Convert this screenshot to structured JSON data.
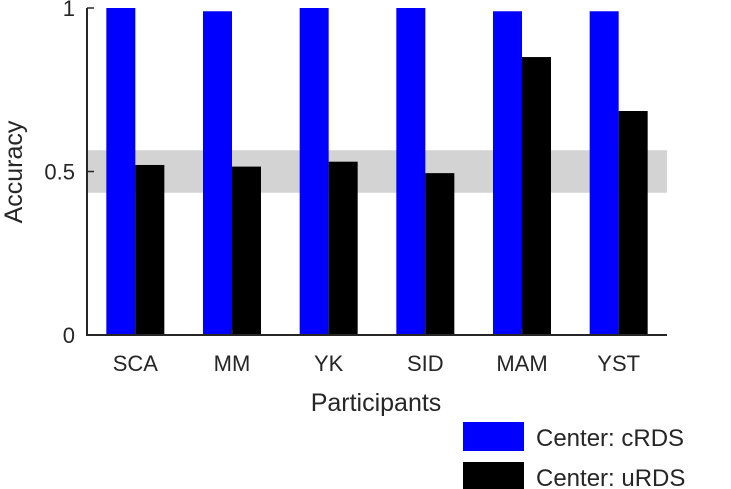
{
  "chart_data": {
    "type": "bar",
    "title": "",
    "xlabel": "Participants",
    "ylabel": "Accuracy",
    "categories": [
      "SCA",
      "MM",
      "YK",
      "SID",
      "MAM",
      "YST"
    ],
    "series": [
      {
        "name": "Center: cRDS",
        "color": "#0000ff",
        "values": [
          1.0,
          0.99,
          1.0,
          1.0,
          0.99,
          0.99
        ]
      },
      {
        "name": "Center: uRDS",
        "color": "#000000",
        "values": [
          0.52,
          0.515,
          0.53,
          0.495,
          0.85,
          0.685
        ]
      }
    ],
    "ylim": [
      0,
      1
    ],
    "yticks": [
      {
        "value": 0,
        "label": "0"
      },
      {
        "value": 0.5,
        "label": "0.5"
      },
      {
        "value": 1,
        "label": "1"
      }
    ],
    "chance_band": {
      "low": 0.435,
      "high": 0.565,
      "color": "#d3d3d3"
    },
    "legend_position": "bottom-right",
    "grid": false
  }
}
